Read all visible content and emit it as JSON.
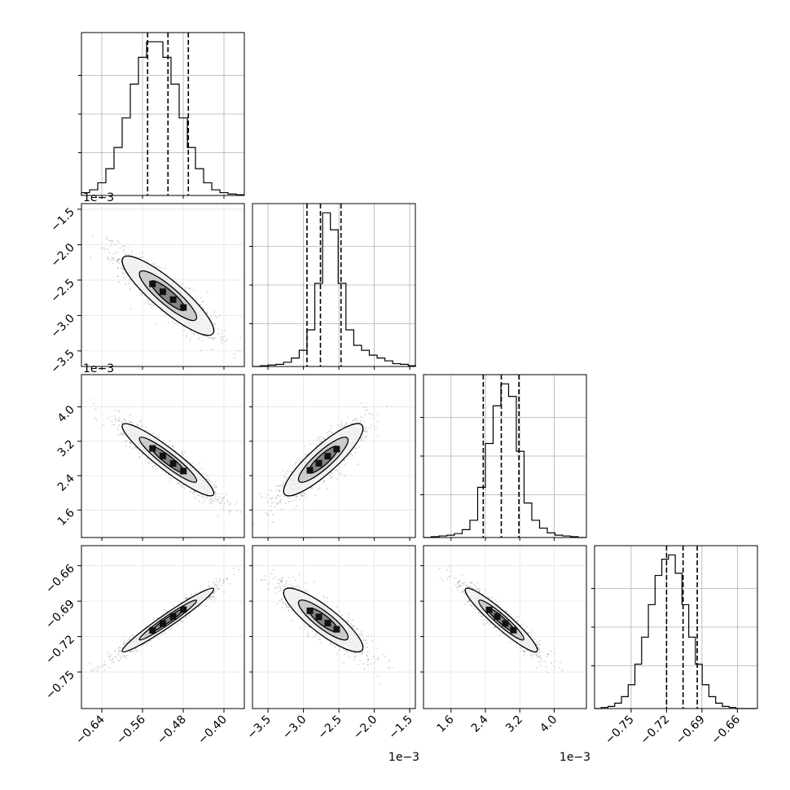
{
  "chart_data": {
    "type": "corner",
    "panels_per_side": 4,
    "grid": true,
    "colors": {
      "line": "#000000",
      "grid": "#b0b0b0",
      "sample": "#000000"
    },
    "histograms": [
      {
        "index": 0,
        "range": [
          -0.68,
          -0.36
        ],
        "edges_from": -0.68,
        "bin_width": 0.016,
        "counts": [
          4,
          8,
          18,
          38,
          68,
          110,
          158,
          196,
          218,
          218,
          196,
          158,
          110,
          68,
          38,
          18,
          8,
          4,
          2,
          1
        ],
        "quantiles": [
          -0.55,
          -0.51,
          -0.47
        ]
      },
      {
        "index": 1,
        "range": [
          -3.72,
          -1.42
        ],
        "edges_from": -3.72,
        "bin_width": 0.11,
        "counts": [
          0,
          1,
          2,
          3,
          6,
          12,
          23,
          52,
          118,
          218,
          194,
          118,
          52,
          30,
          23,
          16,
          12,
          8,
          4,
          3,
          1
        ],
        "quantiles": [
          -2.95,
          -2.76,
          -2.47
        ]
      },
      {
        "index": 2,
        "range": [
          0.96,
          4.75
        ],
        "edges_from": 0.96,
        "bin_width": 0.18,
        "counts": [
          0,
          1,
          2,
          3,
          5,
          10,
          22,
          64,
          120,
          168,
          196,
          180,
          110,
          44,
          22,
          12,
          6,
          3,
          2,
          1,
          0
        ],
        "quantiles": [
          2.35,
          2.77,
          3.18
        ]
      },
      {
        "index": 3,
        "range": [
          -0.781,
          -0.643
        ],
        "edges_from": -0.781,
        "bin_width": 0.0057,
        "counts": [
          0,
          1,
          2,
          5,
          11,
          22,
          41,
          66,
          96,
          123,
          138,
          142,
          125,
          96,
          66,
          41,
          22,
          11,
          5,
          2,
          1,
          0,
          0,
          0
        ],
        "quantiles": [
          -0.72,
          -0.706,
          -0.694
        ]
      }
    ],
    "pairs": [
      {
        "row": 1,
        "col": 0,
        "mean": [
          -0.51,
          -2.72
        ],
        "sd": [
          0.045,
          0.28
        ],
        "rho": -0.88
      },
      {
        "row": 2,
        "col": 0,
        "mean": [
          -0.51,
          2.77
        ],
        "sd": [
          0.045,
          0.42
        ],
        "rho": -0.93
      },
      {
        "row": 2,
        "col": 1,
        "mean": [
          -2.72,
          2.77
        ],
        "sd": [
          0.28,
          0.42
        ],
        "rho": 0.87
      },
      {
        "row": 3,
        "col": 0,
        "mean": [
          -0.51,
          -0.706
        ],
        "sd": [
          0.045,
          0.0135
        ],
        "rho": 0.97
      },
      {
        "row": 3,
        "col": 1,
        "mean": [
          -2.72,
          -0.706
        ],
        "sd": [
          0.28,
          0.0135
        ],
        "rho": -0.86
      },
      {
        "row": 3,
        "col": 2,
        "mean": [
          2.77,
          -0.706
        ],
        "sd": [
          0.42,
          0.0135
        ],
        "rho": -0.94
      }
    ],
    "x_axes": [
      {
        "col": 0,
        "ticks": [
          -0.64,
          -0.56,
          -0.48,
          -0.4
        ],
        "tick_labels": [
          "−0.64",
          "−0.56",
          "−0.48",
          "−0.40"
        ],
        "offset_label": ""
      },
      {
        "col": 1,
        "ticks": [
          -3.5,
          -3.0,
          -2.5,
          -2.0,
          -1.5
        ],
        "tick_labels": [
          "−3.5",
          "−3.0",
          "−2.5",
          "−2.0",
          "−1.5"
        ],
        "offset_label": "1e−3"
      },
      {
        "col": 2,
        "ticks": [
          1.6,
          2.4,
          3.2,
          4.0
        ],
        "tick_labels": [
          "1.6",
          "2.4",
          "3.2",
          "4.0"
        ],
        "offset_label": "1e−3"
      },
      {
        "col": 3,
        "ticks": [
          -0.75,
          -0.72,
          -0.69,
          -0.66
        ],
        "tick_labels": [
          "−0.75",
          "−0.72",
          "−0.69",
          "−0.66"
        ],
        "offset_label": ""
      }
    ],
    "y_axes": [
      {
        "row": 1,
        "ticks": [
          -1.5,
          -2.0,
          -2.5,
          -3.0,
          -3.5
        ],
        "tick_labels": [
          "−1.5",
          "−2.0",
          "−2.5",
          "−3.0",
          "−3.5"
        ],
        "offset_label": "1e−3"
      },
      {
        "row": 2,
        "ticks": [
          4.0,
          3.2,
          2.4,
          1.6
        ],
        "tick_labels": [
          "4.0",
          "3.2",
          "2.4",
          "1.6"
        ],
        "offset_label": "1e−3"
      },
      {
        "row": 3,
        "ticks": [
          -0.66,
          -0.69,
          -0.72,
          -0.75
        ],
        "tick_labels": [
          "−0.66",
          "−0.69",
          "−0.72",
          "−0.75"
        ],
        "offset_label": ""
      }
    ]
  }
}
